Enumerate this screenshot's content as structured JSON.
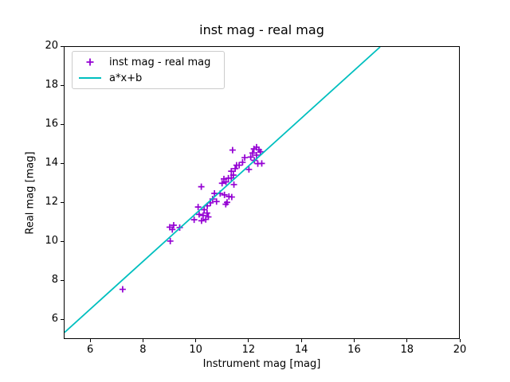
{
  "figure": {
    "title": "inst mag - real mag",
    "xlabel": "Instrument mag [mag]",
    "ylabel": "Real mag [mag]"
  },
  "legend": {
    "entries": [
      {
        "label": "inst mag - real mag",
        "handle": "plus-marker",
        "color": "#9400d3"
      },
      {
        "label": "a*x+b",
        "handle": "line",
        "color": "#00bfbf"
      }
    ]
  },
  "colors": {
    "marker": "#9400d3",
    "fit_line": "#00bfbf",
    "spine": "#000000",
    "background": "#ffffff",
    "legend_border": "#cccccc"
  },
  "chart_data": {
    "type": "scatter",
    "title": "inst mag - real mag",
    "xlabel": "Instrument mag [mag]",
    "ylabel": "Real mag [mag]",
    "xlim": [
      5,
      20
    ],
    "ylim": [
      5,
      20
    ],
    "xticks": [
      6,
      8,
      10,
      12,
      14,
      16,
      18,
      20
    ],
    "yticks": [
      6,
      8,
      10,
      12,
      14,
      16,
      18,
      20
    ],
    "grid": false,
    "legend_position": "upper left",
    "series": [
      {
        "name": "inst mag - real mag",
        "type": "scatter",
        "marker": "+",
        "color": "#9400d3",
        "points": [
          [
            7.21,
            7.52
          ],
          [
            9.02,
            10.0
          ],
          [
            9.0,
            10.72
          ],
          [
            9.1,
            10.6
          ],
          [
            9.15,
            10.82
          ],
          [
            9.38,
            10.7
          ],
          [
            9.93,
            11.1
          ],
          [
            10.21,
            11.05
          ],
          [
            10.12,
            11.38
          ],
          [
            10.27,
            11.32
          ],
          [
            10.37,
            11.12
          ],
          [
            10.42,
            11.45
          ],
          [
            10.47,
            11.25
          ],
          [
            10.08,
            11.76
          ],
          [
            10.31,
            11.62
          ],
          [
            10.43,
            11.82
          ],
          [
            10.55,
            11.97
          ],
          [
            10.63,
            12.17
          ],
          [
            10.2,
            12.8
          ],
          [
            10.7,
            12.46
          ],
          [
            10.78,
            12.04
          ],
          [
            10.92,
            12.45
          ],
          [
            11.08,
            12.38
          ],
          [
            11.25,
            12.3
          ],
          [
            11.36,
            12.27
          ],
          [
            11.18,
            12.0
          ],
          [
            11.13,
            11.9
          ],
          [
            10.99,
            12.98
          ],
          [
            11.06,
            13.2
          ],
          [
            11.14,
            13.05
          ],
          [
            11.23,
            13.24
          ],
          [
            11.42,
            13.4
          ],
          [
            11.34,
            13.25
          ],
          [
            11.44,
            12.91
          ],
          [
            11.34,
            13.6
          ],
          [
            11.49,
            13.73
          ],
          [
            11.54,
            13.91
          ],
          [
            11.64,
            13.91
          ],
          [
            11.77,
            14.06
          ],
          [
            11.85,
            14.3
          ],
          [
            11.39,
            14.69
          ],
          [
            12.01,
            13.69
          ],
          [
            12.08,
            14.33
          ],
          [
            12.15,
            14.54
          ],
          [
            12.2,
            14.75
          ],
          [
            12.3,
            14.84
          ],
          [
            12.39,
            14.7
          ],
          [
            12.45,
            14.6
          ],
          [
            12.3,
            14.43
          ],
          [
            12.22,
            14.16
          ],
          [
            12.35,
            13.99
          ],
          [
            12.5,
            14.0
          ]
        ]
      },
      {
        "name": "a*x+b",
        "type": "line",
        "color": "#00bfbf",
        "a": 1.225,
        "b": -0.825,
        "x_range": [
          5,
          17.0
        ]
      }
    ]
  }
}
